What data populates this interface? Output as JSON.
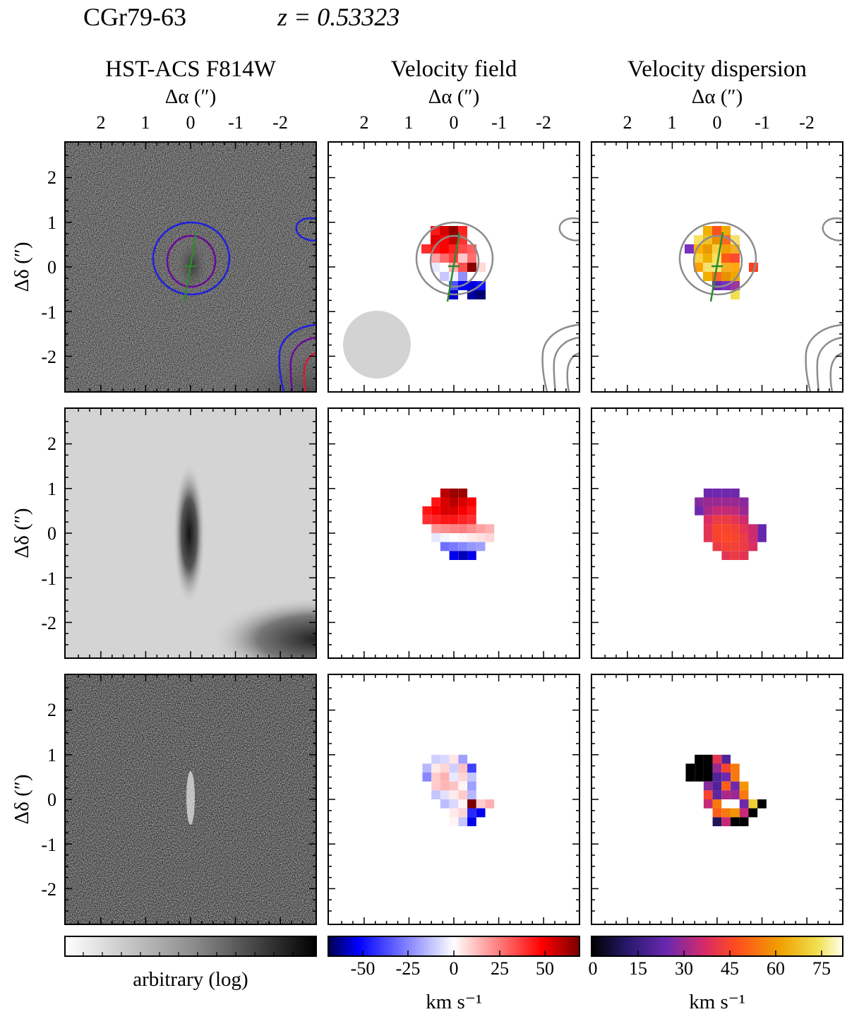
{
  "figure": {
    "object": "CGr79-63",
    "redshift_label": "z = 0.53323",
    "columns": [
      "HST-ACS F814W",
      "Velocity field",
      "Velocity dispersion"
    ],
    "x_axis_label": "Δα (″)",
    "y_axis_label": "Δδ (″)",
    "x_ticks": [
      "2",
      "1",
      "0",
      "-1",
      "-2"
    ],
    "y_ticks": [
      "2",
      "1",
      "0",
      "-1",
      "-2"
    ],
    "colorbars": [
      {
        "name": "imaging",
        "label": "arbitrary (log)",
        "ticks": [],
        "colormap": "greys"
      },
      {
        "name": "velocity",
        "label": "km s⁻¹",
        "ticks": [
          "-50",
          "-25",
          "0",
          "25",
          "50"
        ],
        "colormap": "seismic"
      },
      {
        "name": "dispersion",
        "label": "km s⁻¹",
        "ticks": [
          "0",
          "15",
          "30",
          "45",
          "60",
          "75"
        ],
        "colormap": "cmr-hot"
      }
    ]
  },
  "chart_data": [
    {
      "type": "heatmap",
      "panel": "HST-ACS F814W observed image",
      "xlabel": "Δα (″)",
      "ylabel": "Δδ (″)",
      "xlim": [
        2.8,
        -2.8
      ],
      "ylim": [
        -2.8,
        2.8
      ],
      "contours": "blue, purple and red isophotes around the galaxy centre and the companion at lower right",
      "kinematic_axis": {
        "color": "#2e8b2e",
        "center": [
          0,
          0
        ]
      }
    },
    {
      "type": "heatmap",
      "panel": "Velocity field (observed)",
      "xlabel": "Δα (″)",
      "ylabel": "Δδ (″)",
      "xlim": [
        2.8,
        -2.8
      ],
      "ylim": [
        -2.8,
        2.8
      ],
      "colorbar_range_kms": [
        -70,
        70
      ],
      "psf_circle": true
    },
    {
      "type": "heatmap",
      "panel": "Velocity dispersion (observed)",
      "xlabel": "Δα (″)",
      "ylabel": "Δδ (″)",
      "xlim": [
        2.8,
        -2.8
      ],
      "ylim": [
        -2.8,
        2.8
      ],
      "colorbar_range_kms": [
        0,
        82
      ]
    },
    {
      "type": "heatmap",
      "panel": "Model image",
      "ylabel": "Δδ (″)",
      "xlim": [
        2.8,
        -2.8
      ],
      "ylim": [
        -2.8,
        2.8
      ]
    },
    {
      "type": "heatmap",
      "panel": "Model velocity field",
      "xlim": [
        2.8,
        -2.8
      ],
      "ylim": [
        -2.8,
        2.8
      ],
      "rows": [
        {
          "y": 0.9,
          "x": [
            0.6,
            0.4,
            0.2,
            0.0,
            -0.2,
            -0.4
          ],
          "v": [
            0,
            0,
            60,
            65,
            65,
            0
          ],
          "visible": [
            0,
            0,
            1,
            1,
            1,
            0
          ]
        },
        {
          "y": 0.7,
          "x": [
            0.6,
            0.4,
            0.2,
            0.0,
            -0.2,
            -0.4
          ],
          "v": [
            40,
            45,
            55,
            60,
            55,
            50
          ],
          "visible": [
            0,
            1,
            1,
            1,
            1,
            1
          ]
        },
        {
          "y": 0.5,
          "x": [
            0.6,
            0.4,
            0.2,
            0.0,
            -0.2,
            -0.4
          ],
          "v": [
            45,
            50,
            55,
            55,
            50,
            45
          ],
          "visible": [
            1,
            1,
            1,
            1,
            1,
            1
          ]
        },
        {
          "y": 0.3,
          "x": [
            0.6,
            0.4,
            0.2,
            0.0,
            -0.2,
            -0.4
          ],
          "v": [
            40,
            42,
            45,
            45,
            42,
            40
          ],
          "visible": [
            1,
            1,
            1,
            1,
            1,
            1
          ]
        },
        {
          "y": 0.1,
          "x": [
            0.4,
            0.2,
            0.0,
            -0.2,
            -0.4,
            -0.6,
            -0.8
          ],
          "v": [
            20,
            22,
            24,
            25,
            22,
            18,
            15
          ],
          "visible": [
            1,
            1,
            1,
            1,
            1,
            1,
            1
          ]
        },
        {
          "y": -0.1,
          "x": [
            0.4,
            0.2,
            0.0,
            -0.2,
            -0.4,
            -0.6,
            -0.8
          ],
          "v": [
            -5,
            -2,
            0,
            2,
            4,
            6,
            8
          ],
          "visible": [
            1,
            1,
            1,
            1,
            1,
            1,
            1
          ]
        },
        {
          "y": -0.3,
          "x": [
            0.2,
            0.0,
            -0.2,
            -0.4,
            -0.6
          ],
          "v": [
            -30,
            -28,
            -25,
            -22,
            -20
          ],
          "visible": [
            1,
            1,
            1,
            1,
            1
          ]
        },
        {
          "y": -0.5,
          "x": [
            0.0,
            -0.2,
            -0.4
          ],
          "v": [
            -55,
            -60,
            -55
          ],
          "visible": [
            1,
            1,
            1
          ]
        }
      ]
    },
    {
      "type": "heatmap",
      "panel": "Model velocity dispersion",
      "xlim": [
        2.8,
        -2.8
      ],
      "ylim": [
        -2.8,
        2.8
      ],
      "rows": [
        {
          "y": 0.9,
          "x": [
            0.2,
            0.0,
            -0.2,
            -0.4
          ],
          "v": [
            25,
            25,
            25,
            25
          ]
        },
        {
          "y": 0.7,
          "x": [
            0.4,
            0.2,
            0.0,
            -0.2,
            -0.4,
            -0.6
          ],
          "v": [
            28,
            30,
            30,
            30,
            30,
            28
          ]
        },
        {
          "y": 0.5,
          "x": [
            0.4,
            0.2,
            0.0,
            -0.2,
            -0.4,
            -0.6
          ],
          "v": [
            25,
            32,
            35,
            35,
            34,
            30
          ]
        },
        {
          "y": 0.3,
          "x": [
            0.2,
            0.0,
            -0.2,
            -0.4,
            -0.6
          ],
          "v": [
            38,
            42,
            42,
            40,
            36
          ]
        },
        {
          "y": 0.1,
          "x": [
            0.2,
            0.0,
            -0.2,
            -0.4,
            -0.6,
            -0.8,
            -1.0
          ],
          "v": [
            40,
            45,
            45,
            44,
            40,
            36,
            24
          ]
        },
        {
          "y": -0.1,
          "x": [
            0.2,
            0.0,
            -0.2,
            -0.4,
            -0.6,
            -0.8,
            -1.0
          ],
          "v": [
            40,
            45,
            46,
            45,
            42,
            36,
            24
          ]
        },
        {
          "y": -0.3,
          "x": [
            0.0,
            -0.2,
            -0.4,
            -0.6,
            -0.8
          ],
          "v": [
            42,
            44,
            44,
            42,
            38
          ]
        },
        {
          "y": -0.5,
          "x": [
            -0.2,
            -0.4,
            -0.6
          ],
          "v": [
            40,
            42,
            40
          ]
        }
      ]
    },
    {
      "type": "heatmap",
      "panel": "Residual image",
      "ylabel": "Δδ (″)",
      "xlim": [
        2.8,
        -2.8
      ],
      "ylim": [
        -2.8,
        2.8
      ]
    },
    {
      "type": "heatmap",
      "panel": "Residual velocity field",
      "xlim": [
        2.8,
        -2.8
      ],
      "ylim": [
        -2.8,
        2.8
      ],
      "rows": [
        {
          "y": 0.9,
          "x": [
            0.4,
            0.2,
            0.0,
            -0.2
          ],
          "v": [
            -10,
            -8,
            5,
            -20
          ]
        },
        {
          "y": 0.7,
          "x": [
            0.6,
            0.4,
            0.2,
            0.0,
            -0.2,
            -0.4
          ],
          "v": [
            -15,
            4,
            8,
            -10,
            12,
            -40
          ]
        },
        {
          "y": 0.5,
          "x": [
            0.6,
            0.4,
            0.2,
            0.0,
            -0.2,
            -0.4
          ],
          "v": [
            -25,
            10,
            15,
            -5,
            8,
            -12
          ]
        },
        {
          "y": 0.3,
          "x": [
            0.4,
            0.2,
            0.0,
            -0.2,
            -0.4
          ],
          "v": [
            10,
            14,
            12,
            2,
            -20
          ]
        },
        {
          "y": 0.1,
          "x": [
            0.4,
            0.2,
            0.0,
            -0.2,
            -0.4
          ],
          "v": [
            -12,
            -6,
            4,
            10,
            -15
          ]
        },
        {
          "y": -0.1,
          "x": [
            0.2,
            0.0,
            -0.2,
            -0.4,
            -0.6,
            -0.8
          ],
          "v": [
            -14,
            -8,
            2,
            70,
            10,
            15
          ]
        },
        {
          "y": -0.3,
          "x": [
            0.0,
            -0.2,
            -0.4,
            -0.6
          ],
          "v": [
            4,
            8,
            -45,
            -55
          ]
        },
        {
          "y": -0.5,
          "x": [
            0.0,
            -0.2,
            -0.4
          ],
          "v": [
            2,
            -12,
            -55
          ]
        }
      ]
    },
    {
      "type": "heatmap",
      "panel": "Residual velocity dispersion",
      "xlim": [
        2.8,
        -2.8
      ],
      "ylim": [
        -2.8,
        2.8
      ],
      "rows": [
        {
          "y": 0.9,
          "x": [
            0.4,
            0.2,
            0.0,
            -0.2
          ],
          "v": [
            0,
            0,
            40,
            20
          ]
        },
        {
          "y": 0.7,
          "x": [
            0.6,
            0.4,
            0.2,
            0.0,
            -0.2,
            -0.4
          ],
          "v": [
            0,
            0,
            0,
            30,
            45,
            55
          ]
        },
        {
          "y": 0.5,
          "x": [
            0.6,
            0.4,
            0.2,
            0.0,
            -0.2,
            -0.4
          ],
          "v": [
            0,
            0,
            0,
            20,
            25,
            55
          ]
        },
        {
          "y": 0.3,
          "x": [
            0.2,
            0.0,
            -0.2,
            -0.4,
            -0.6
          ],
          "v": [
            28,
            20,
            50,
            25,
            60
          ]
        },
        {
          "y": 0.1,
          "x": [
            0.2,
            0.0,
            -0.2,
            -0.4,
            -0.6
          ],
          "v": [
            45,
            22,
            32,
            30,
            55
          ]
        },
        {
          "y": -0.1,
          "x": [
            0.2,
            0.0,
            -0.6,
            -0.8,
            -1.0
          ],
          "v": [
            35,
            55,
            25,
            70,
            0
          ]
        },
        {
          "y": -0.3,
          "x": [
            0.0,
            -0.2,
            -0.4,
            -0.6,
            -0.8
          ],
          "v": [
            50,
            55,
            60,
            35,
            0
          ]
        },
        {
          "y": -0.5,
          "x": [
            0.0,
            -0.2,
            -0.4,
            -0.6
          ],
          "v": [
            10,
            35,
            0,
            0
          ]
        }
      ]
    }
  ]
}
